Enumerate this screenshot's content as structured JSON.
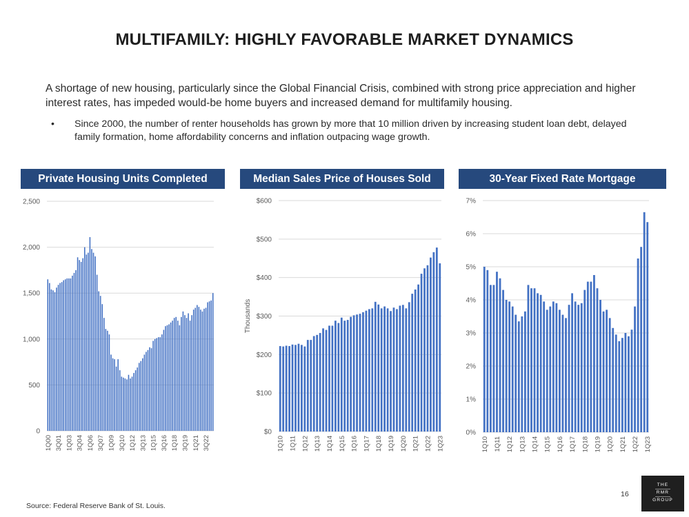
{
  "title": "MULTIFAMILY: HIGHLY FAVORABLE MARKET DYNAMICS",
  "intro": "A shortage of new housing, particularly since the Global Financial Crisis, combined with strong price appreciation and higher interest rates, has impeded would-be home buyers and increased demand for multifamily housing.",
  "bullet": {
    "marker": "•",
    "text": "Since 2000, the number of renter households has grown by more that 10 million driven by increasing student loan debt, delayed family formation, home affordability concerns and inflation outpacing wage growth."
  },
  "chart_data": [
    {
      "type": "bar",
      "title": "Private Housing Units Completed",
      "xlabel": "",
      "ylabel": "",
      "ylim": [
        0,
        2500
      ],
      "yticks": [
        "0",
        "500",
        "1,000",
        "1,500",
        "2,000",
        "2,500"
      ],
      "xticklabels": [
        "1Q00",
        "3Q01",
        "1Q03",
        "3Q04",
        "1Q06",
        "3Q07",
        "1Q09",
        "3Q10",
        "1Q12",
        "3Q13",
        "1Q15",
        "3Q16",
        "1Q18",
        "3Q19",
        "1Q21",
        "3Q22"
      ],
      "color": "#4472c4",
      "values": [
        1650,
        1610,
        1540,
        1530,
        1510,
        1560,
        1590,
        1610,
        1620,
        1640,
        1650,
        1660,
        1660,
        1660,
        1690,
        1720,
        1750,
        1890,
        1860,
        1840,
        1880,
        2000,
        1920,
        1940,
        2110,
        1980,
        1940,
        1900,
        1700,
        1520,
        1470,
        1380,
        1230,
        1110,
        1090,
        1050,
        830,
        790,
        780,
        700,
        780,
        660,
        590,
        580,
        570,
        560,
        610,
        570,
        590,
        630,
        660,
        690,
        740,
        760,
        790,
        830,
        860,
        880,
        910,
        900,
        980,
        1000,
        1010,
        1020,
        1020,
        1050,
        1100,
        1140,
        1150,
        1160,
        1180,
        1200,
        1230,
        1240,
        1200,
        1150,
        1240,
        1300,
        1260,
        1230,
        1280,
        1200,
        1260,
        1320,
        1340,
        1370,
        1350,
        1320,
        1300,
        1330,
        1340,
        1400,
        1410,
        1420,
        1500
      ]
    },
    {
      "type": "bar",
      "title": "Median Sales Price of Houses Sold",
      "xlabel": "",
      "ylabel": "Thousands",
      "ylim": [
        0,
        600
      ],
      "yticks": [
        "$0",
        "$100",
        "$200",
        "$300",
        "$400",
        "$500",
        "$600"
      ],
      "xticklabels": [
        "1Q10",
        "1Q11",
        "1Q12",
        "1Q13",
        "1Q14",
        "1Q15",
        "1Q16",
        "1Q17",
        "1Q18",
        "1Q19",
        "1Q20",
        "1Q21",
        "1Q22",
        "1Q23"
      ],
      "color": "#4472c4",
      "values": [
        222,
        221,
        223,
        222,
        226,
        225,
        228,
        225,
        221,
        238,
        238,
        248,
        251,
        256,
        268,
        264,
        275,
        275,
        288,
        282,
        296,
        288,
        290,
        298,
        302,
        304,
        306,
        310,
        314,
        318,
        320,
        337,
        330,
        320,
        325,
        320,
        313,
        322,
        318,
        327,
        329,
        320,
        336,
        358,
        369,
        382,
        410,
        424,
        432,
        452,
        466,
        478,
        437
      ]
    },
    {
      "type": "bar",
      "title": "30-Year Fixed Rate Mortgage",
      "xlabel": "",
      "ylabel": "",
      "ylim": [
        0,
        7
      ],
      "yticks": [
        "0%",
        "1%",
        "2%",
        "3%",
        "4%",
        "5%",
        "6%",
        "7%"
      ],
      "xticklabels": [
        "1Q10",
        "1Q11",
        "1Q12",
        "1Q13",
        "1Q14",
        "1Q15",
        "1Q16",
        "1Q17",
        "1Q18",
        "1Q19",
        "1Q20",
        "1Q21",
        "1Q22",
        "1Q23"
      ],
      "color": "#4472c4",
      "values": [
        5.0,
        4.9,
        4.45,
        4.45,
        4.85,
        4.65,
        4.3,
        4.0,
        3.95,
        3.8,
        3.55,
        3.35,
        3.5,
        3.65,
        4.45,
        4.35,
        4.35,
        4.2,
        4.15,
        3.95,
        3.7,
        3.8,
        3.95,
        3.9,
        3.7,
        3.55,
        3.45,
        3.85,
        4.2,
        3.95,
        3.85,
        3.9,
        4.3,
        4.55,
        4.55,
        4.75,
        4.35,
        4.0,
        3.65,
        3.7,
        3.45,
        3.15,
        2.95,
        2.75,
        2.85,
        3.0,
        2.9,
        3.1,
        3.8,
        5.25,
        5.6,
        6.65,
        6.35
      ]
    }
  ],
  "source": "Source:  Federal Reserve Bank of St. Louis.",
  "page_number": "16",
  "logo": {
    "line1": "THE",
    "line2": "RMR",
    "line3": "GROUP"
  }
}
